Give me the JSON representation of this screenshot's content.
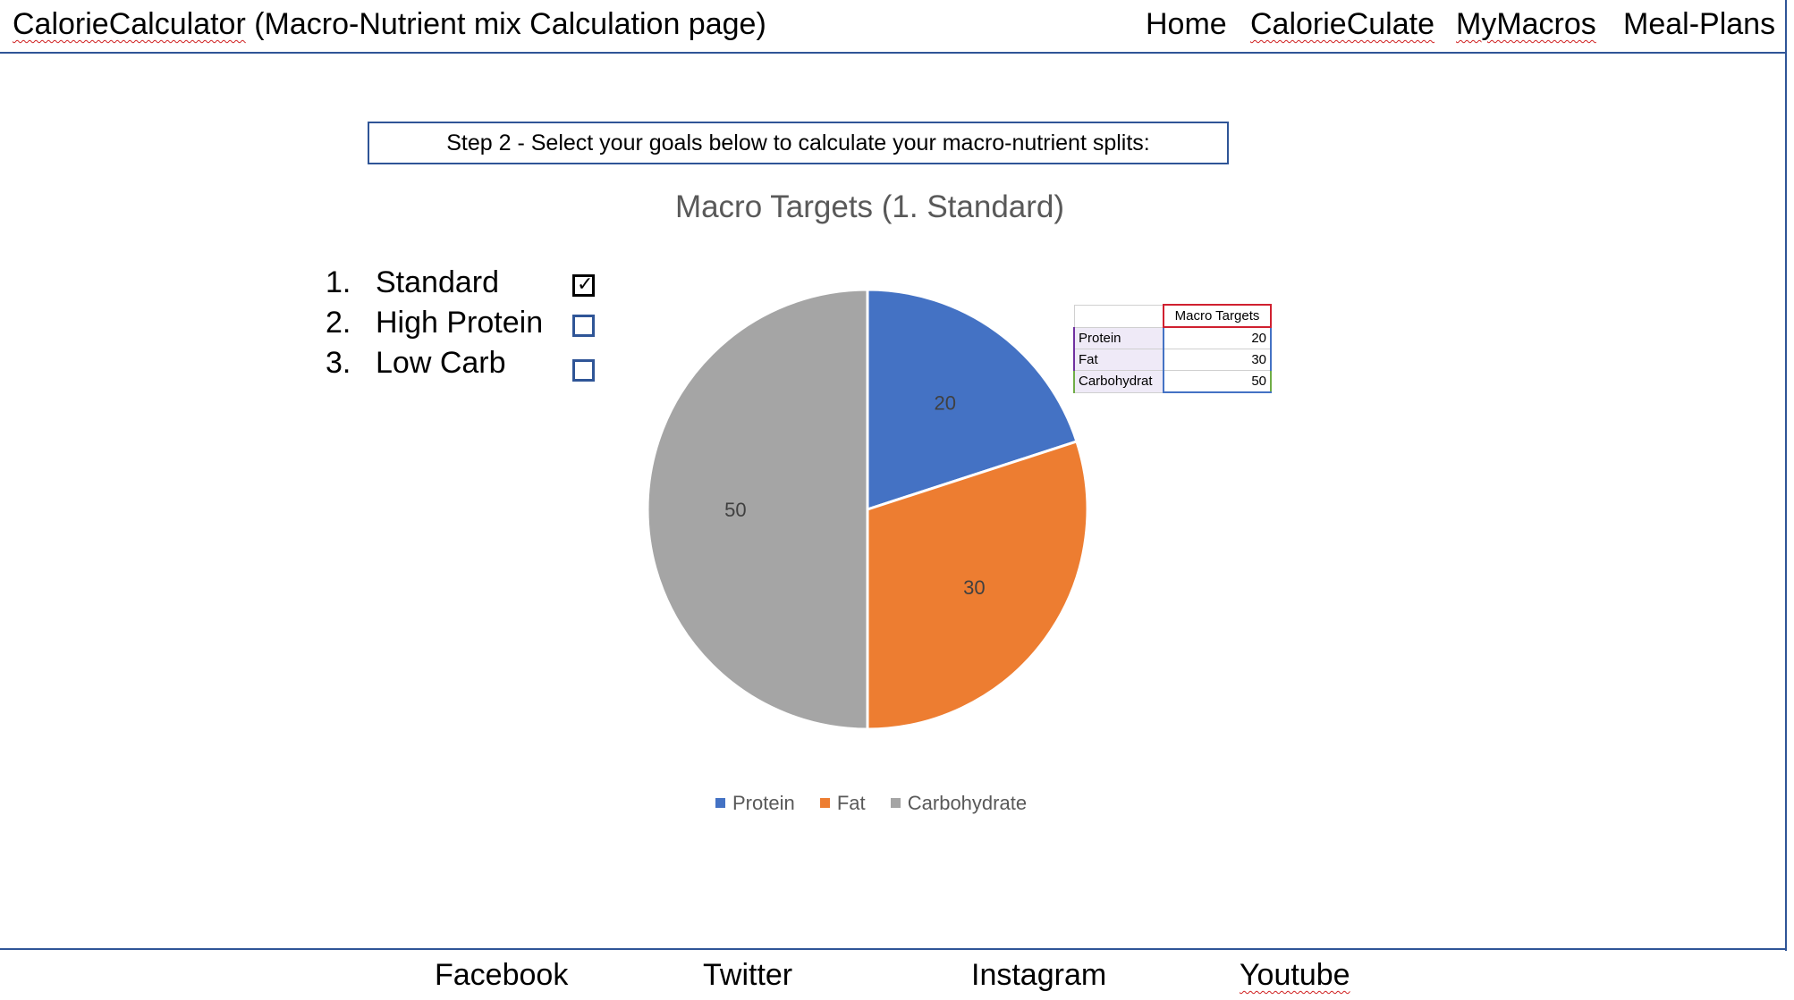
{
  "header": {
    "app_name": "CalorieCalculator",
    "page_subtitle": " (Macro-Nutrient mix Calculation page)",
    "nav": {
      "home": "Home",
      "caloriculate": "CalorieCulate",
      "mymacros": "MyMacros",
      "meal_plans": "Meal-Plans"
    }
  },
  "step": {
    "text": "Step 2 - Select your goals below to calculate your macro-nutrient splits:"
  },
  "goals": [
    {
      "num": "1.",
      "label": "Standard",
      "checked": true
    },
    {
      "num": "2.",
      "label": "High Protein",
      "checked": false
    },
    {
      "num": "3.",
      "label": "Low Carb",
      "checked": false
    }
  ],
  "colors": {
    "accent_border": "#2F5597",
    "protein": "#4472C4",
    "fat": "#ED7D31",
    "carbohydrate": "#A5A5A5"
  },
  "chart_data": {
    "type": "pie",
    "title": "Macro Targets (1. Standard)",
    "categories": [
      "Protein",
      "Fat",
      "Carbohydrate"
    ],
    "values": [
      20,
      30,
      50
    ],
    "legend_position": "bottom"
  },
  "mini_table": {
    "header": "Macro Targets",
    "rows": [
      {
        "label": "Protein",
        "value": "20"
      },
      {
        "label": "Fat",
        "value": "30"
      },
      {
        "label": "Carbohydrat",
        "value": "50"
      }
    ]
  },
  "footer": {
    "facebook": "Facebook",
    "twitter": "Twitter",
    "instagram": "Instagram",
    "youtube": "Youtube"
  }
}
